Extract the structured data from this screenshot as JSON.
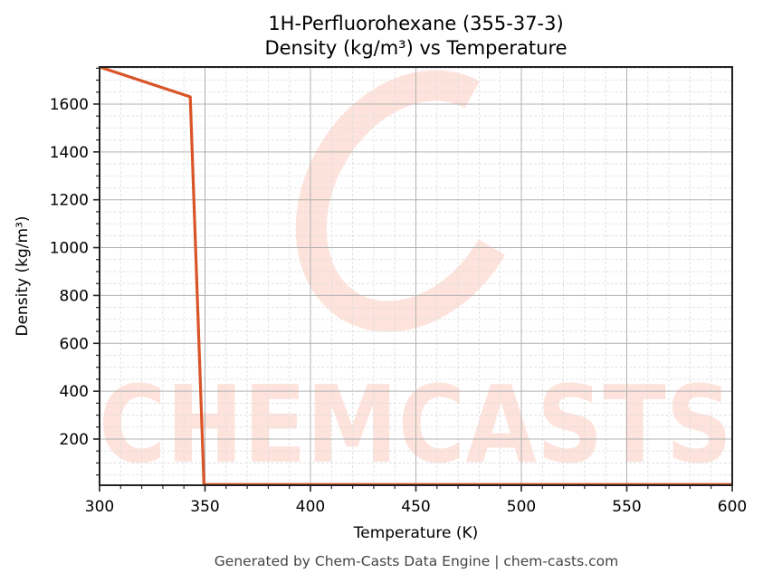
{
  "title": {
    "line1": "1H-Perfluorohexane (355-37-3)",
    "line2": "Density (kg/m³) vs Temperature"
  },
  "footer": "Generated by Chem-Casts Data Engine | chem-casts.com",
  "watermark": "CHEMCASTS",
  "colors": {
    "line": "#d95426",
    "watermark": "#fde3dc",
    "grid_major": "#b0b0b0",
    "grid_minor": "#dddddd"
  },
  "chart_data": {
    "type": "line",
    "title": "1H-Perfluorohexane (355-37-3)\nDensity (kg/m³) vs Temperature",
    "xlabel": "Temperature (K)",
    "ylabel": "Density (kg/m³)",
    "xlim": [
      300,
      600
    ],
    "ylim": [
      7,
      1755
    ],
    "x_ticks": [
      300,
      350,
      400,
      450,
      500,
      550,
      600
    ],
    "y_ticks": [
      200,
      400,
      600,
      800,
      1000,
      1200,
      1400,
      1600
    ],
    "grid": true,
    "legend": null,
    "series": [
      {
        "name": "Density",
        "x": [
          300,
          343,
          349.5,
          600
        ],
        "y": [
          1755,
          1630,
          10,
          10
        ]
      }
    ]
  }
}
